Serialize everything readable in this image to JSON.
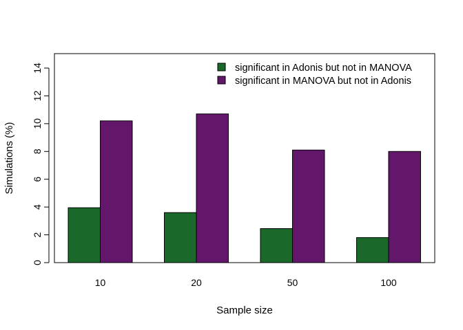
{
  "chart_data": {
    "type": "bar",
    "title": "",
    "xlabel": "Sample size",
    "ylabel": "Simulations (%)",
    "categories": [
      "10",
      "20",
      "50",
      "100"
    ],
    "series": [
      {
        "name": "significant in Adonis but not in MANOVA",
        "color": "#1b682b",
        "values": [
          3.95,
          3.6,
          2.45,
          1.8
        ]
      },
      {
        "name": "significant in MANOVA but not in Adonis",
        "color": "#63176b",
        "values": [
          10.2,
          10.7,
          8.1,
          8.0
        ]
      }
    ],
    "ylim": [
      0,
      15
    ],
    "yticks": [
      "0",
      "2",
      "4",
      "6",
      "8",
      "10",
      "12",
      "14"
    ],
    "grid": false,
    "legend_position": "top-right"
  }
}
